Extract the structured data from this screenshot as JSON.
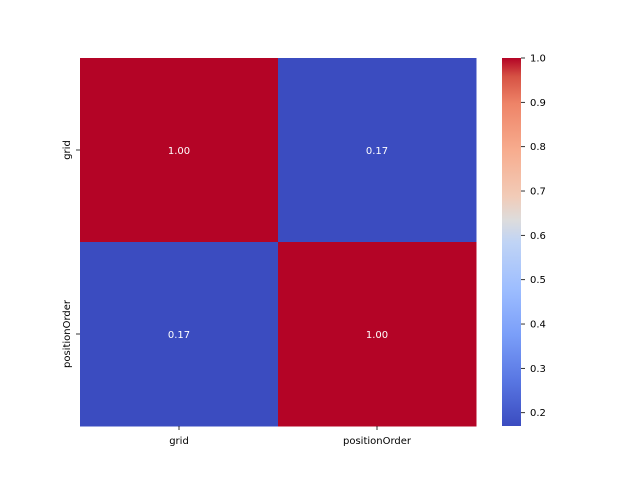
{
  "chart_data": {
    "type": "heatmap",
    "x_labels": [
      "grid",
      "positionOrder"
    ],
    "y_labels": [
      "grid",
      "positionOrder"
    ],
    "values": [
      [
        1.0,
        0.17
      ],
      [
        0.17,
        1.0
      ]
    ],
    "annotations": [
      [
        "1.00",
        "0.17"
      ],
      [
        "0.17",
        "1.00"
      ]
    ],
    "colormap": "coolwarm",
    "vmin": 0.17,
    "vmax": 1.0,
    "colorbar_ticks": [
      "0.2",
      "0.3",
      "0.4",
      "0.5",
      "0.6",
      "0.7",
      "0.8",
      "0.9",
      "1.0"
    ],
    "colors": {
      "high": "#b40426",
      "low": "#3b4cc0",
      "annotation_text": "#ffffff"
    }
  }
}
